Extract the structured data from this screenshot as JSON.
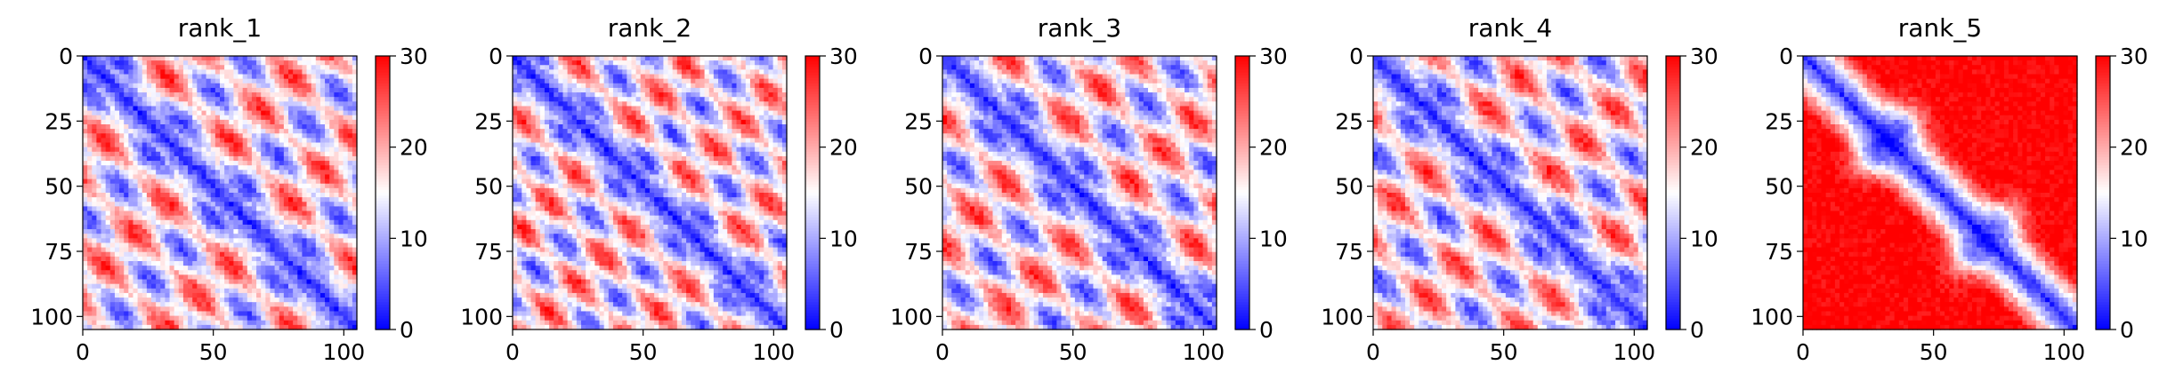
{
  "chart_data": [
    {
      "type": "heatmap",
      "title": "rank_1",
      "pattern": "banded",
      "xticks": [
        "0",
        "50",
        "100"
      ],
      "yticks": [
        "0",
        "25",
        "50",
        "75",
        "100"
      ],
      "xlim": [
        0,
        105
      ],
      "ylim": [
        105,
        0
      ],
      "colorbar": {
        "ticks": [
          "0",
          "10",
          "20",
          "30"
        ],
        "min": 0,
        "max": 30,
        "colormap": "bwr"
      }
    },
    {
      "type": "heatmap",
      "title": "rank_2",
      "pattern": "banded-dense",
      "xticks": [
        "0",
        "50",
        "100"
      ],
      "yticks": [
        "0",
        "25",
        "50",
        "75",
        "100"
      ],
      "xlim": [
        0,
        105
      ],
      "ylim": [
        105,
        0
      ],
      "colorbar": {
        "ticks": [
          "0",
          "10",
          "20",
          "30"
        ],
        "min": 0,
        "max": 30,
        "colormap": "bwr"
      }
    },
    {
      "type": "heatmap",
      "title": "rank_3",
      "pattern": "banded",
      "xticks": [
        "0",
        "50",
        "100"
      ],
      "yticks": [
        "0",
        "25",
        "50",
        "75",
        "100"
      ],
      "xlim": [
        0,
        105
      ],
      "ylim": [
        105,
        0
      ],
      "colorbar": {
        "ticks": [
          "0",
          "10",
          "20",
          "30"
        ],
        "min": 0,
        "max": 30,
        "colormap": "bwr"
      }
    },
    {
      "type": "heatmap",
      "title": "rank_4",
      "pattern": "banded",
      "xticks": [
        "0",
        "50",
        "100"
      ],
      "yticks": [
        "0",
        "25",
        "50",
        "75",
        "100"
      ],
      "xlim": [
        0,
        105
      ],
      "ylim": [
        105,
        0
      ],
      "colorbar": {
        "ticks": [
          "0",
          "10",
          "20",
          "30"
        ],
        "min": 0,
        "max": 30,
        "colormap": "bwr"
      }
    },
    {
      "type": "heatmap",
      "title": "rank_5",
      "pattern": "diagonal-only",
      "xticks": [
        "0",
        "50",
        "100"
      ],
      "yticks": [
        "0",
        "25",
        "50",
        "75",
        "100"
      ],
      "xlim": [
        0,
        105
      ],
      "ylim": [
        105,
        0
      ],
      "colorbar": {
        "ticks": [
          "0",
          "10",
          "20",
          "30"
        ],
        "min": 0,
        "max": 30,
        "colormap": "bwr"
      }
    }
  ]
}
